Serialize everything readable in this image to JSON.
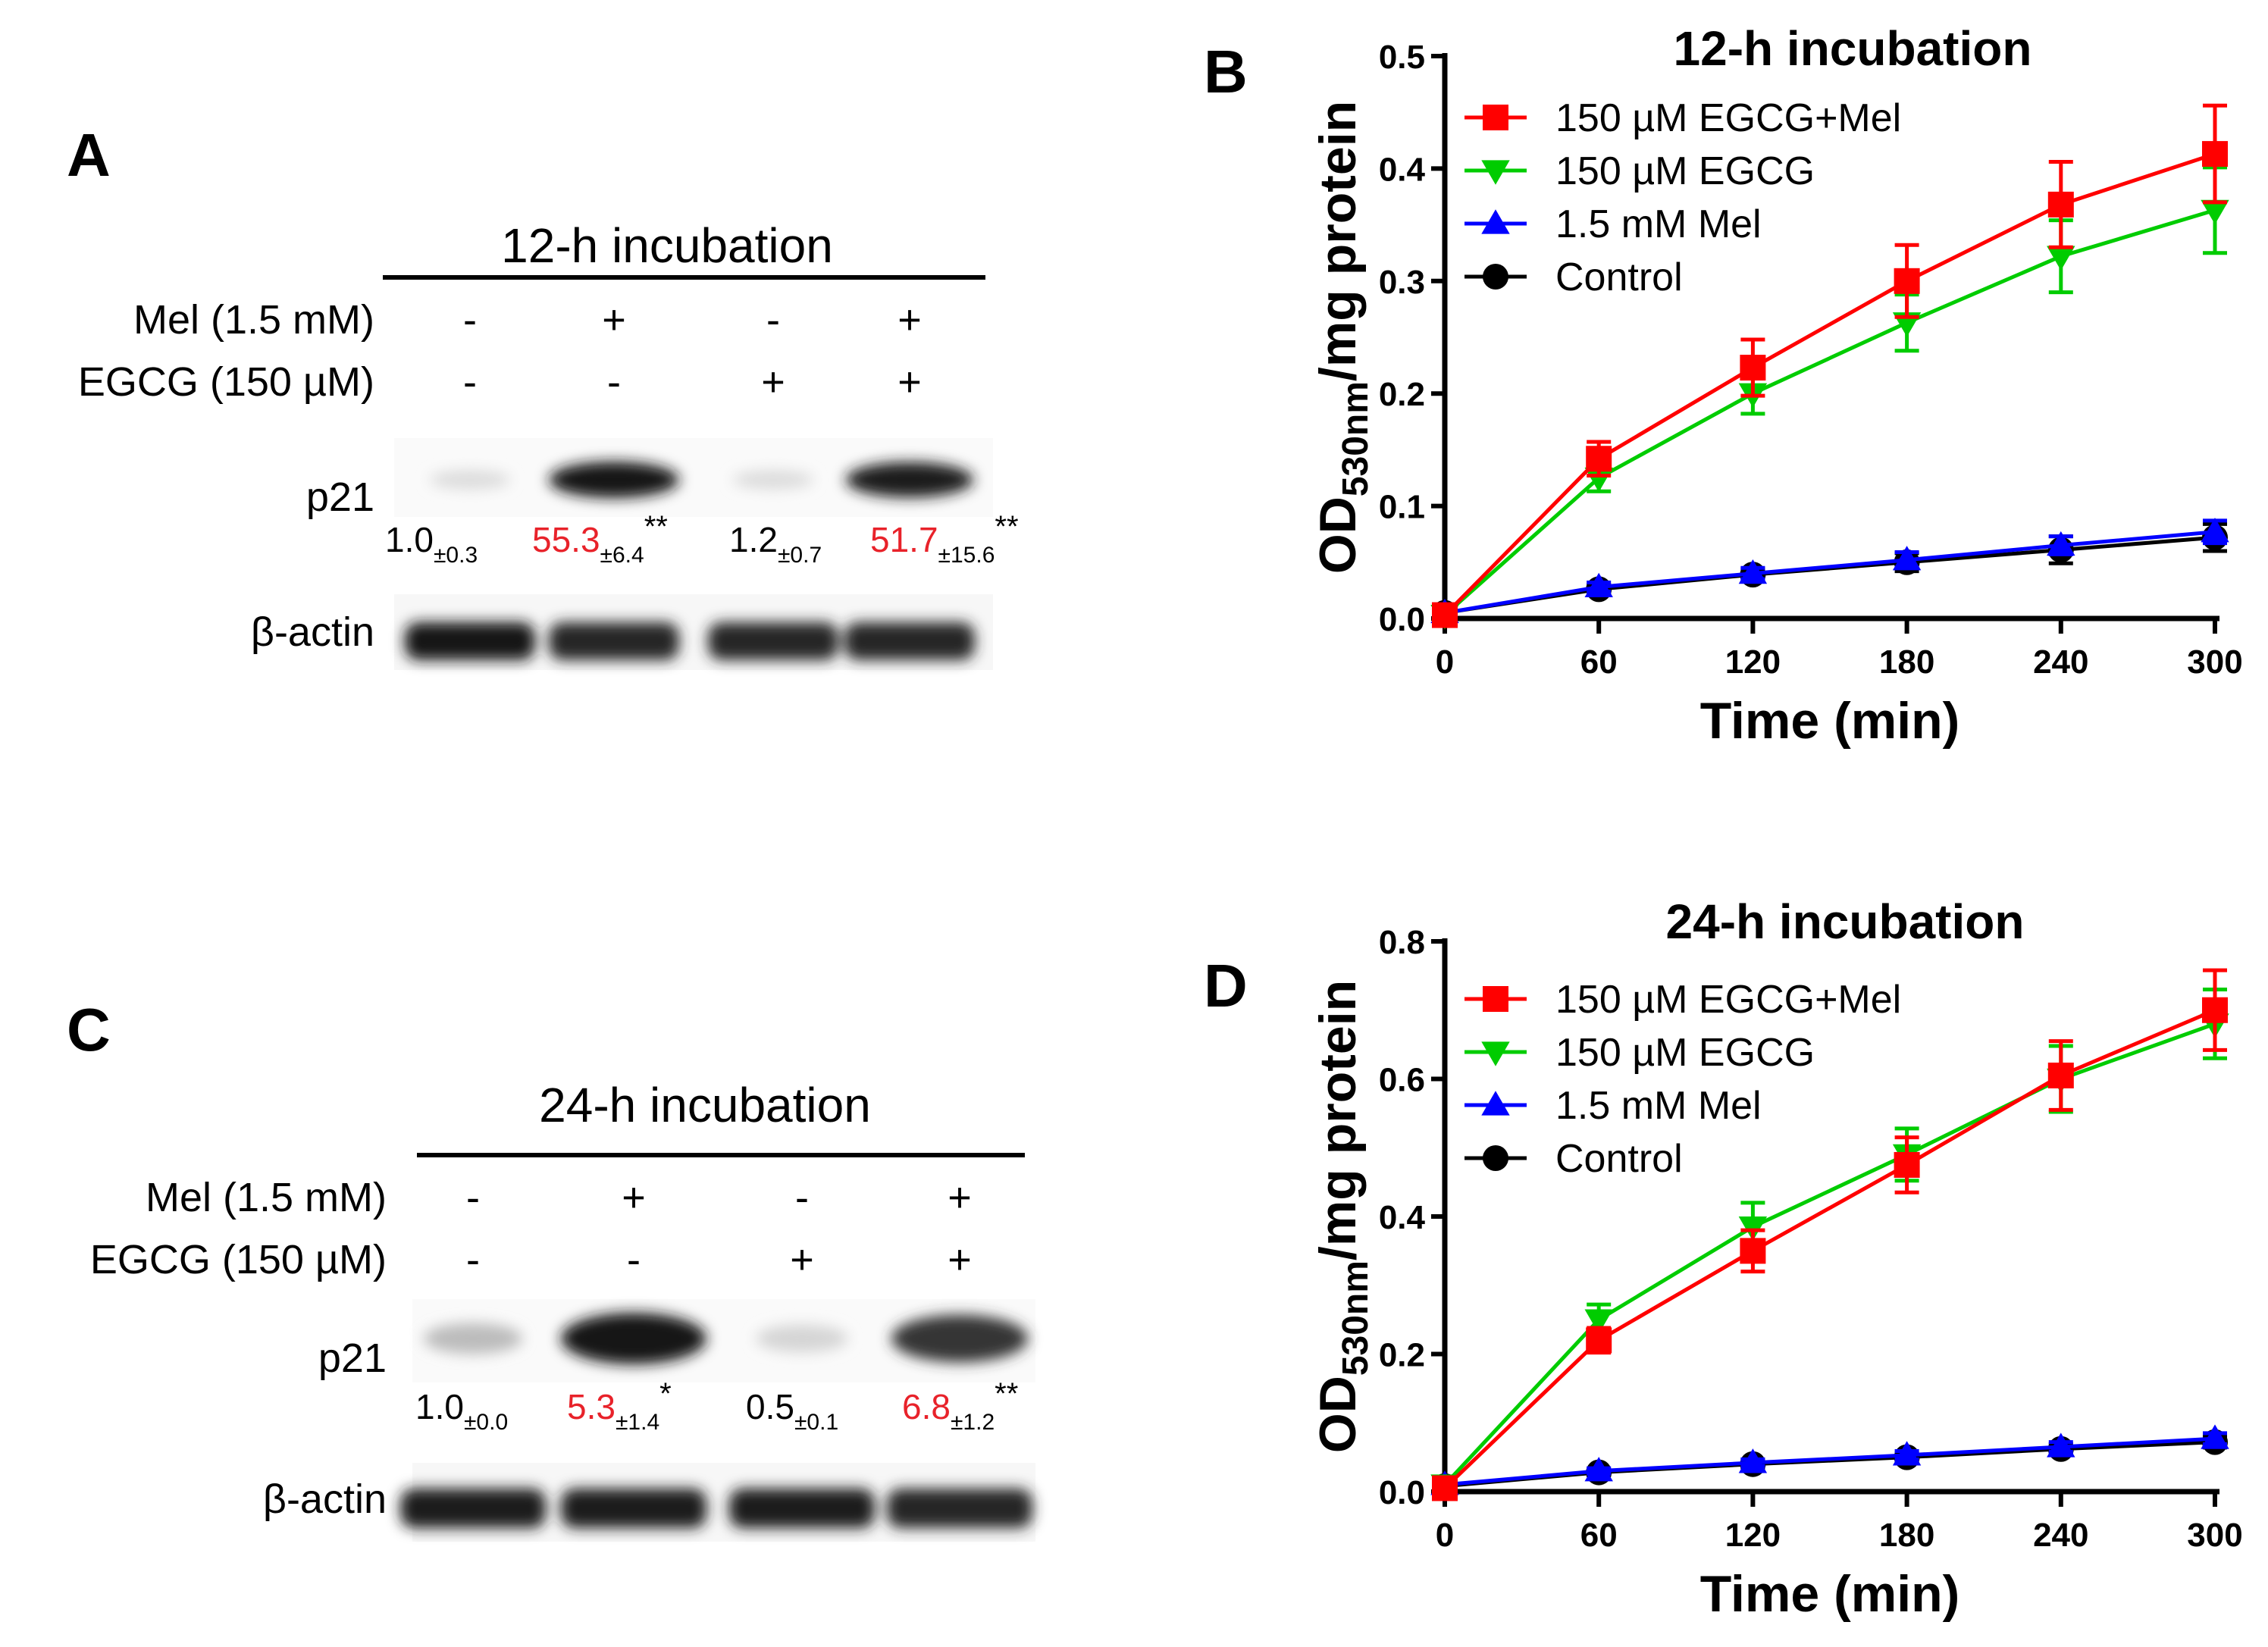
{
  "panelA": {
    "letter": "A",
    "title": "12-h incubation",
    "row_labels": [
      "Mel (1.5 mM)",
      "EGCG (150 µM)"
    ],
    "mel_signs": [
      "-",
      "+",
      "-",
      "+"
    ],
    "egcg_signs": [
      "-",
      "-",
      "+",
      "+"
    ],
    "band_labels": [
      "p21",
      "β-actin"
    ],
    "p21_intensity": [
      0.05,
      1.0,
      0.05,
      0.95
    ],
    "actin_intensity": [
      1.0,
      0.9,
      0.9,
      0.9
    ],
    "quant": [
      {
        "value": "1.0",
        "sd": "±0.3",
        "sig": "",
        "color": "#000000"
      },
      {
        "value": "55.3",
        "sd": "±6.4",
        "sig": "**",
        "color": "#e8222a"
      },
      {
        "value": "1.2",
        "sd": "±0.7",
        "sig": "",
        "color": "#000000"
      },
      {
        "value": "51.7",
        "sd": "±15.6",
        "sig": "**",
        "color": "#e8222a"
      }
    ]
  },
  "panelC": {
    "letter": "C",
    "title": "24-h incubation",
    "row_labels": [
      "Mel (1.5 mM)",
      "EGCG (150 µM)"
    ],
    "mel_signs": [
      "-",
      "+",
      "-",
      "+"
    ],
    "egcg_signs": [
      "-",
      "-",
      "+",
      "+"
    ],
    "band_labels": [
      "p21",
      "β-actin"
    ],
    "p21_intensity": [
      0.2,
      1.0,
      0.08,
      0.85
    ],
    "actin_intensity": [
      0.95,
      0.95,
      0.95,
      0.9
    ],
    "quant": [
      {
        "value": "1.0",
        "sd": "±0.0",
        "sig": "",
        "color": "#000000"
      },
      {
        "value": "5.3",
        "sd": "±1.4",
        "sig": "*",
        "color": "#e8222a"
      },
      {
        "value": "0.5",
        "sd": "±0.1",
        "sig": "",
        "color": "#000000"
      },
      {
        "value": "6.8",
        "sd": "±1.2",
        "sig": "**",
        "color": "#e8222a"
      }
    ]
  },
  "chart_data": [
    {
      "panel": "B",
      "type": "line",
      "title": "12-h incubation",
      "xlabel": "Time (min)",
      "ylabel_main": "OD",
      "ylabel_sub": "530nm",
      "ylabel_rest": "/mg protein",
      "x": [
        0,
        60,
        120,
        180,
        240,
        300
      ],
      "xticks": [
        0,
        60,
        120,
        180,
        240,
        300
      ],
      "xlim": [
        0,
        300
      ],
      "ylim": [
        0,
        0.5
      ],
      "yticks": [
        "0.0",
        "0.1",
        "0.2",
        "0.3",
        "0.4",
        "0.5"
      ],
      "legend_position": "top-left",
      "series": [
        {
          "name": "150 µM EGCG+Mel",
          "color": "#ff0000",
          "marker": "square",
          "values": [
            0.003,
            0.142,
            0.223,
            0.3,
            0.368,
            0.413
          ],
          "err": [
            0.003,
            0.015,
            0.025,
            0.032,
            0.038,
            0.043
          ]
        },
        {
          "name": "150 µM EGCG",
          "color": "#00cc00",
          "marker": "triangle-down",
          "values": [
            0.003,
            0.125,
            0.2,
            0.263,
            0.322,
            0.363
          ],
          "err": [
            0.003,
            0.012,
            0.018,
            0.025,
            0.032,
            0.038
          ]
        },
        {
          "name": "1.5 mM Mel",
          "color": "#0000ff",
          "marker": "triangle-up",
          "values": [
            0.005,
            0.028,
            0.04,
            0.052,
            0.065,
            0.077
          ],
          "err": [
            0.002,
            0.004,
            0.005,
            0.007,
            0.008,
            0.01
          ]
        },
        {
          "name": "Control",
          "color": "#000000",
          "marker": "circle",
          "values": [
            0.005,
            0.026,
            0.039,
            0.05,
            0.061,
            0.072
          ],
          "err": [
            0.002,
            0.004,
            0.005,
            0.008,
            0.012,
            0.012
          ]
        }
      ]
    },
    {
      "panel": "D",
      "type": "line",
      "title": "24-h incubation",
      "xlabel": "Time (min)",
      "ylabel_main": "OD",
      "ylabel_sub": "530nm",
      "ylabel_rest": "/mg protein",
      "x": [
        0,
        60,
        120,
        180,
        240,
        300
      ],
      "xticks": [
        0,
        60,
        120,
        180,
        240,
        300
      ],
      "xlim": [
        0,
        300
      ],
      "ylim": [
        0,
        0.8
      ],
      "yticks": [
        "0.0",
        "0.2",
        "0.4",
        "0.6",
        "0.8"
      ],
      "legend_position": "top-left",
      "series": [
        {
          "name": "150 µM EGCG+Mel",
          "color": "#ff0000",
          "marker": "square",
          "values": [
            0.005,
            0.22,
            0.35,
            0.475,
            0.605,
            0.7
          ],
          "err": [
            0.005,
            0.018,
            0.03,
            0.04,
            0.05,
            0.058
          ]
        },
        {
          "name": "150 µM EGCG",
          "color": "#00cc00",
          "marker": "triangle-down",
          "values": [
            0.01,
            0.25,
            0.385,
            0.49,
            0.6,
            0.68
          ],
          "err": [
            0.005,
            0.022,
            0.035,
            0.038,
            0.048,
            0.05
          ]
        },
        {
          "name": "1.5 mM Mel",
          "color": "#0000ff",
          "marker": "triangle-up",
          "values": [
            0.01,
            0.03,
            0.042,
            0.053,
            0.065,
            0.077
          ],
          "err": [
            0.003,
            0.004,
            0.005,
            0.006,
            0.007,
            0.008
          ]
        },
        {
          "name": "Control",
          "color": "#000000",
          "marker": "circle",
          "values": [
            0.008,
            0.028,
            0.04,
            0.05,
            0.062,
            0.072
          ],
          "err": [
            0.003,
            0.004,
            0.005,
            0.006,
            0.007,
            0.008
          ]
        }
      ]
    }
  ]
}
